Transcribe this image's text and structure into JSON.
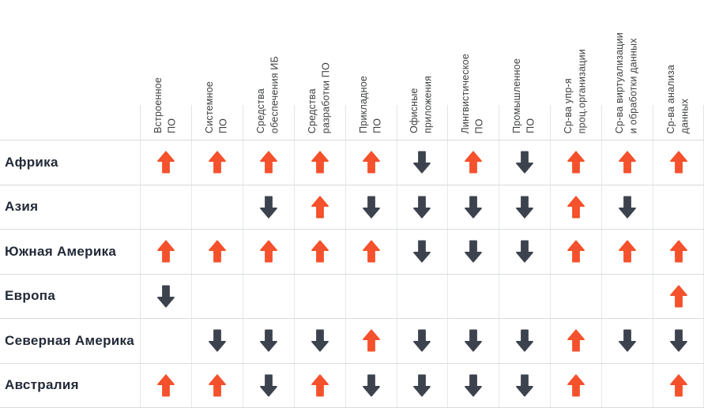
{
  "chart_data": {
    "type": "table",
    "description_visible_text_only": true,
    "colors": {
      "up": "#F4512C",
      "down": "#3D434E"
    },
    "columns": [
      "Встроенное\nПО",
      "Системное\nПО",
      "Средства\nобеспечения ИБ",
      "Средства\nразработки ПО",
      "Прикладное\nПО",
      "Офисные\nприложения",
      "Лингвистическое\nПО",
      "Промышленное\nПО",
      "Ср-ва упр-я\nпроц.организации",
      "Ср-ва виртуализации\nи обработки данных",
      "Ср-ва анализа\nданных"
    ],
    "rows": [
      {
        "region": "Африка",
        "trends": [
          "up",
          "up",
          "up",
          "up",
          "up",
          "down",
          "up",
          "down",
          "up",
          "up",
          "up"
        ]
      },
      {
        "region": "Азия",
        "trends": [
          "",
          "",
          "down",
          "up",
          "down",
          "down",
          "down",
          "down",
          "up",
          "down",
          ""
        ]
      },
      {
        "region": "Южная Америка",
        "trends": [
          "up",
          "up",
          "up",
          "up",
          "up",
          "down",
          "down",
          "down",
          "up",
          "up",
          "up"
        ]
      },
      {
        "region": "Европа",
        "trends": [
          "down",
          "",
          "",
          "",
          "",
          "",
          "",
          "",
          "",
          "",
          "up"
        ]
      },
      {
        "region": "Северная Америка",
        "trends": [
          "",
          "down",
          "down",
          "down",
          "up",
          "down",
          "down",
          "down",
          "up",
          "down",
          "down"
        ]
      },
      {
        "region": "Австралия",
        "trends": [
          "up",
          "up",
          "down",
          "up",
          "down",
          "down",
          "down",
          "down",
          "up",
          "",
          "up"
        ]
      }
    ]
  }
}
